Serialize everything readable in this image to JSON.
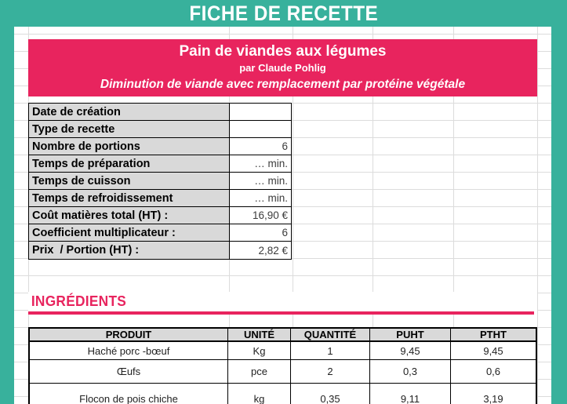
{
  "app": {
    "title": "FICHE DE RECETTE"
  },
  "theme": {
    "teal": "#38B19C",
    "pink": "#E8245E",
    "header_cell_gray": "#D9D9D9",
    "border_black": "#000000",
    "gridline_gray": "#DCDCDC"
  },
  "banner": {
    "title": "Pain de viandes aux légumes",
    "author_line": "par Claude Pohlig",
    "subtitle": "Diminution de viande avec remplacement par protéine végétale"
  },
  "details": {
    "rows": [
      {
        "label": "Date de création",
        "value": ""
      },
      {
        "label": "Type de recette",
        "value": ""
      },
      {
        "label": "Nombre de portions",
        "value": "6"
      },
      {
        "label": "Temps de préparation",
        "value": "… min."
      },
      {
        "label": "Temps de cuisson",
        "value": "… min."
      },
      {
        "label": "Temps de refroidissement",
        "value": "… min."
      },
      {
        "label": "Coût matières total (HT) :",
        "value": "16,90 €"
      },
      {
        "label": "Coefficient multiplicateur :",
        "value": "6"
      },
      {
        "label": "Prix  / Portion (HT) :",
        "value": "2,82 €"
      }
    ]
  },
  "ingredients_section": {
    "heading": "INGRÉDIENTS",
    "table": {
      "columns": [
        "PRODUIT",
        "UNITÉ",
        "QUANTITÉ",
        "PUHT",
        "PTHT"
      ],
      "rows": [
        [
          "Haché porc -bœuf",
          "Kg",
          "1",
          "9,45",
          "9,45"
        ],
        [
          "Œufs",
          "pce",
          "2",
          "0,3",
          "0,6"
        ],
        [
          "Flocon de pois chiche",
          "kg",
          "0,35",
          "9,11",
          "3,19"
        ]
      ]
    }
  }
}
